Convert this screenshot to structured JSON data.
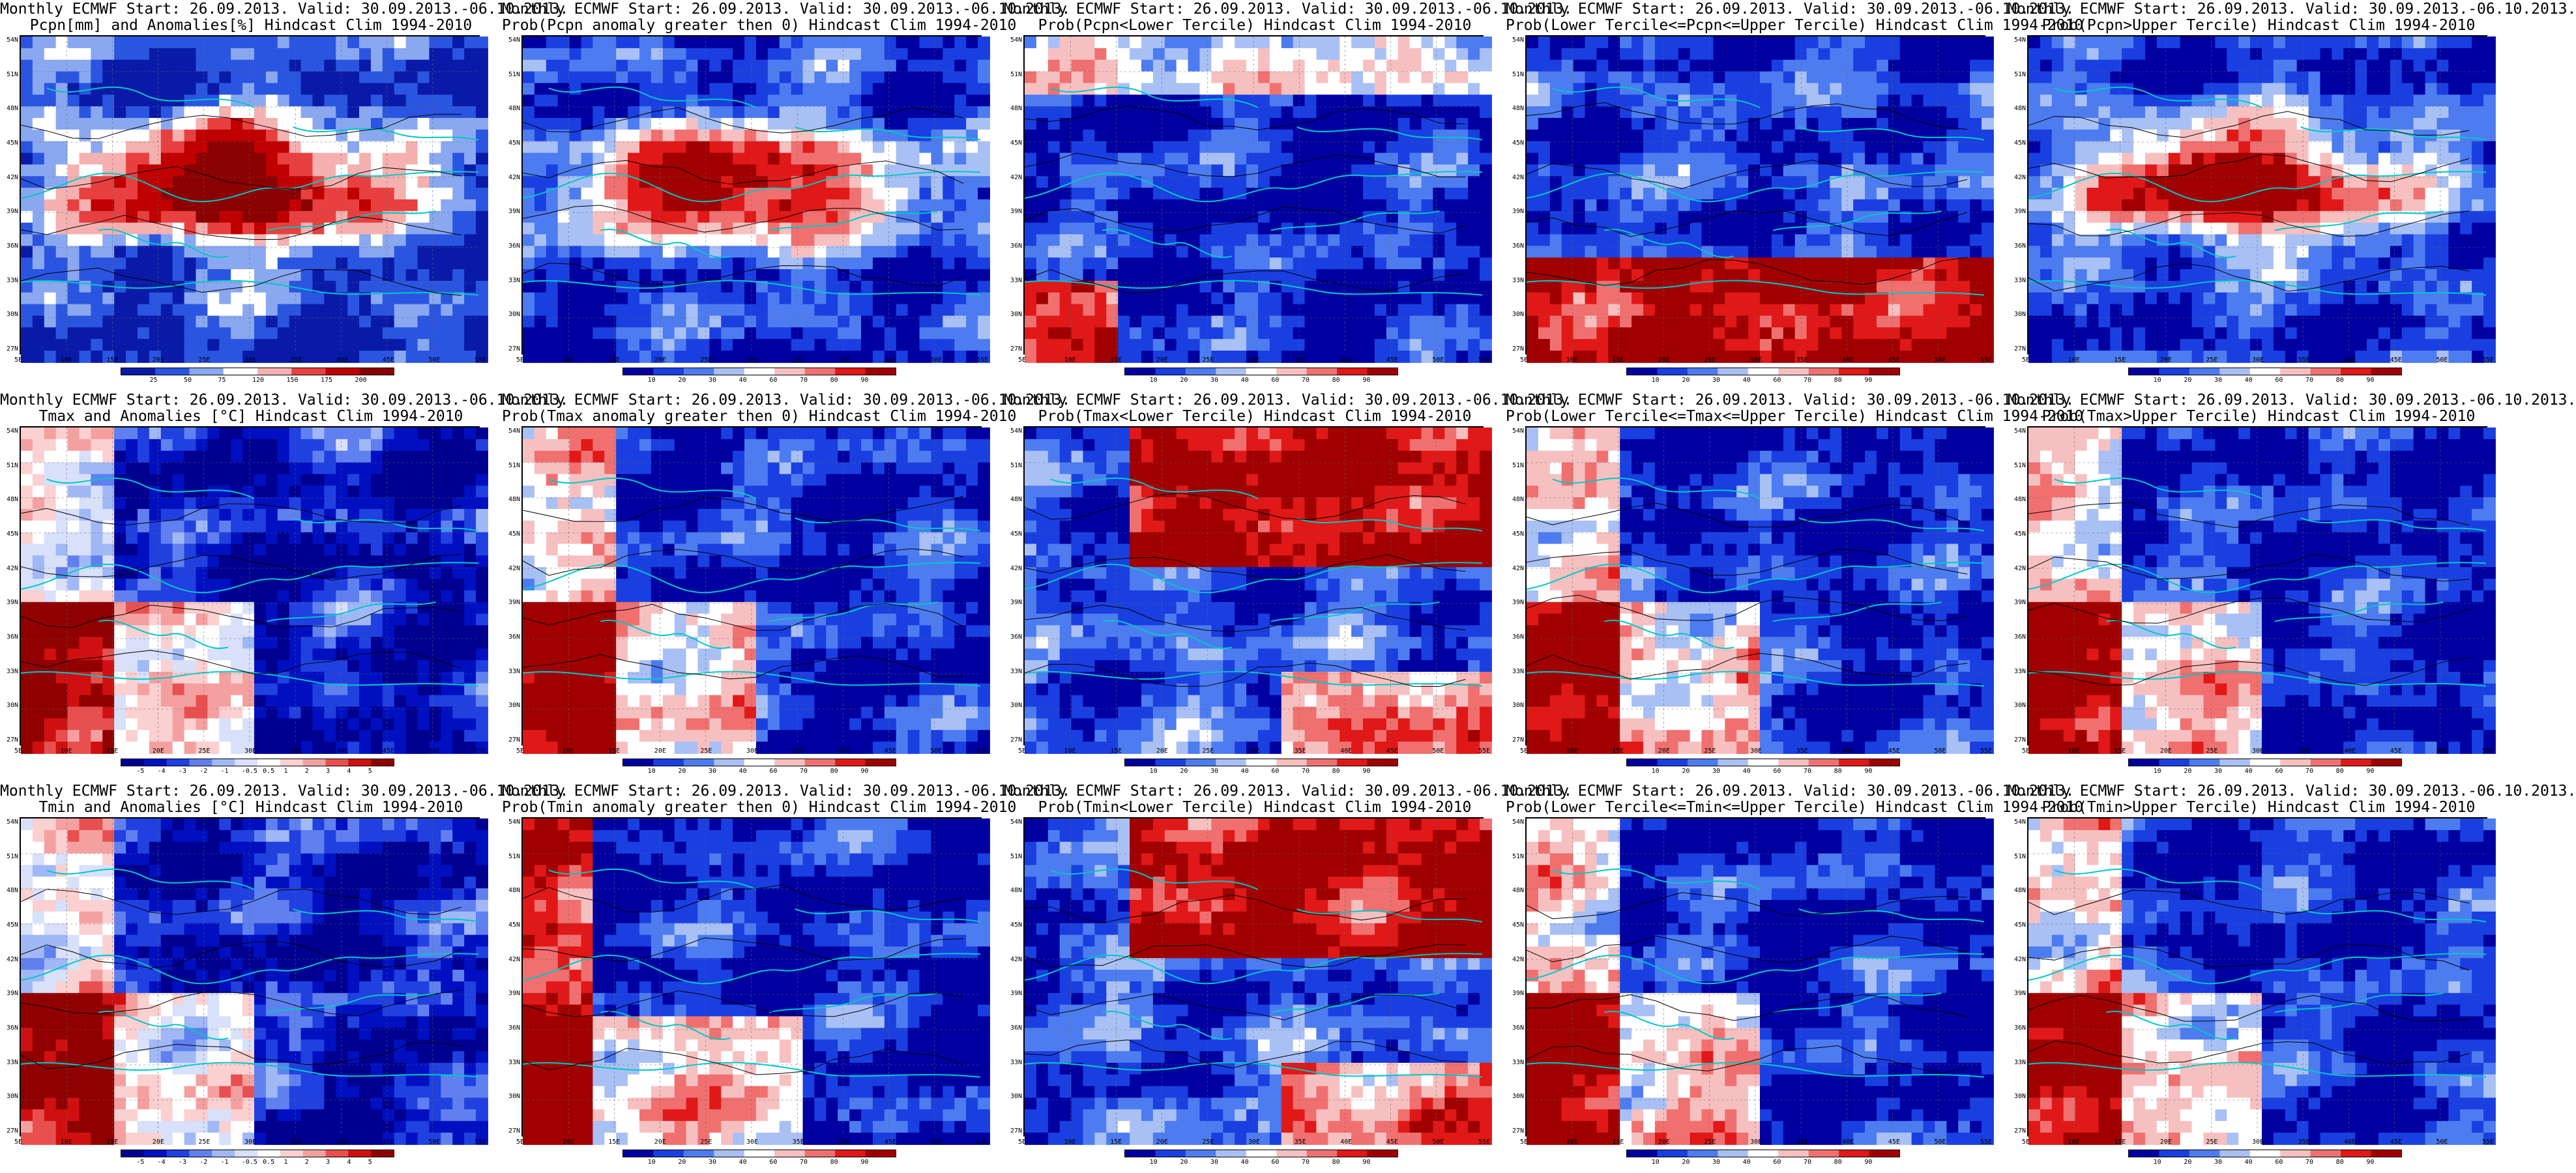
{
  "panels": [
    {
      "line1": "Monthly ECMWF Start: 26.09.2013. Valid: 30.09.2013.-06.10.2013.",
      "line2": "Pcpn[mm] and Anomalies[%] Hindcast Clim 1994-2010",
      "scale": "anom_pcpn",
      "colorbar_labels": [
        "25",
        "50",
        "75",
        "120",
        "150",
        "175",
        "200"
      ],
      "pattern": "wet"
    },
    {
      "line1": "Monthly ECMWF Start: 26.09.2013. Valid: 30.09.2013.-06.10.2013.",
      "line2": "Prob(Pcpn anomaly greater then 0) Hindcast Clim 1994-2010",
      "scale": "prob",
      "colorbar_labels": [
        "10",
        "20",
        "30",
        "40",
        "60",
        "70",
        "80",
        "90"
      ],
      "pattern": "wet"
    },
    {
      "line1": "Monthly ECMWF Start: 26.09.2013. Valid: 30.09.2013.-06.10.2013.",
      "line2": "Prob(Pcpn<Lower Tercile) Hindcast Clim 1994-2010",
      "scale": "prob",
      "colorbar_labels": [
        "10",
        "20",
        "30",
        "40",
        "60",
        "70",
        "80",
        "90"
      ],
      "pattern": "dry"
    },
    {
      "line1": "Monthly ECMWF Start: 26.09.2013. Valid: 30.09.2013.-06.10.2013.",
      "line2": "Prob(Lower Tercile<=Pcpn<=Upper Tercile) Hindcast Clim 1994-2010",
      "scale": "prob",
      "colorbar_labels": [
        "10",
        "20",
        "30",
        "40",
        "60",
        "70",
        "80",
        "90"
      ],
      "pattern": "south"
    },
    {
      "line1": "Monthly ECMWF Start: 26.09.2013. Valid: 30.09.2013.-06.10.2013.",
      "line2": "Prob(Pcpn>Upper Tercile) Hindcast Clim 1994-2010",
      "scale": "prob",
      "colorbar_labels": [
        "10",
        "20",
        "30",
        "40",
        "60",
        "70",
        "80",
        "90"
      ],
      "pattern": "wet"
    },
    {
      "line1": "Monthly ECMWF Start: 26.09.2013. Valid: 30.09.2013.-06.10.2013.",
      "line2": "Tmax and Anomalies [°C] Hindcast Clim 1994-2010",
      "scale": "anom_temp",
      "colorbar_labels": [
        "-5",
        "-4",
        "-3",
        "-2",
        "-1",
        "-0.5",
        "0.5",
        "1",
        "2",
        "3",
        "4",
        "5"
      ],
      "pattern": "cold"
    },
    {
      "line1": "Monthly ECMWF Start: 26.09.2013. Valid: 30.09.2013.-06.10.2013.",
      "line2": "Prob(Tmax anomaly greater then 0) Hindcast Clim 1994-2010",
      "scale": "prob",
      "colorbar_labels": [
        "10",
        "20",
        "30",
        "40",
        "60",
        "70",
        "80",
        "90"
      ],
      "pattern": "cold"
    },
    {
      "line1": "Monthly ECMWF Start: 26.09.2013. Valid: 30.09.2013.-06.10.2013.",
      "line2": "Prob(Tmax<Lower Tercile) Hindcast Clim 1994-2010",
      "scale": "prob",
      "colorbar_labels": [
        "10",
        "20",
        "30",
        "40",
        "60",
        "70",
        "80",
        "90"
      ],
      "pattern": "hotnorth"
    },
    {
      "line1": "Monthly ECMWF Start: 26.09.2013. Valid: 30.09.2013.-06.10.2013.",
      "line2": "Prob(Lower Tercile<=Tmax<=Upper Tercile) Hindcast Clim 1994-2010",
      "scale": "prob",
      "colorbar_labels": [
        "10",
        "20",
        "30",
        "40",
        "60",
        "70",
        "80",
        "90"
      ],
      "pattern": "cold"
    },
    {
      "line1": "Monthly ECMWF Start: 26.09.2013. Valid: 30.09.2013.-06.10.2013.",
      "line2": "Prob(Tmax>Upper Tercile) Hindcast Clim 1994-2010",
      "scale": "prob",
      "colorbar_labels": [
        "10",
        "20",
        "30",
        "40",
        "60",
        "70",
        "80",
        "90"
      ],
      "pattern": "cold"
    },
    {
      "line1": "Monthly ECMWF Start: 26.09.2013. Valid: 30.09.2013.-06.10.2013.",
      "line2": "Tmin and Anomalies [°C] Hindcast Clim 1994-2010",
      "scale": "anom_temp",
      "colorbar_labels": [
        "-5",
        "-4",
        "-3",
        "-2",
        "-1",
        "-0.5",
        "0.5",
        "1",
        "2",
        "3",
        "4",
        "5"
      ],
      "pattern": "cold"
    },
    {
      "line1": "Monthly ECMWF Start: 26.09.2013. Valid: 30.09.2013.-06.10.2013.",
      "line2": "Prob(Tmin anomaly greater then 0) Hindcast Clim 1994-2010",
      "scale": "prob",
      "colorbar_labels": [
        "10",
        "20",
        "30",
        "40",
        "60",
        "70",
        "80",
        "90"
      ],
      "pattern": "coldsouthwarm"
    },
    {
      "line1": "Monthly ECMWF Start: 26.09.2013. Valid: 30.09.2013.-06.10.2013.",
      "line2": "Prob(Tmin<Lower Tercile) Hindcast Clim 1994-2010",
      "scale": "prob",
      "colorbar_labels": [
        "10",
        "20",
        "30",
        "40",
        "60",
        "70",
        "80",
        "90"
      ],
      "pattern": "hotnorth"
    },
    {
      "line1": "Monthly ECMWF Start: 26.09.2013. Valid: 30.09.2013.-06.10.2013.",
      "line2": "Prob(Lower Tercile<=Tmin<=Upper Tercile) Hindcast Clim 1994-2010",
      "scale": "prob",
      "colorbar_labels": [
        "10",
        "20",
        "30",
        "40",
        "60",
        "70",
        "80",
        "90"
      ],
      "pattern": "cold"
    },
    {
      "line1": "Monthly ECMWF Start: 26.09.2013. Valid: 30.09.2013.-06.10.2013.",
      "line2": "Prob(Tmin>Upper Tercile) Hindcast Clim 1994-2010",
      "scale": "prob",
      "colorbar_labels": [
        "10",
        "20",
        "30",
        "40",
        "60",
        "70",
        "80",
        "90"
      ],
      "pattern": "cold"
    }
  ],
  "axis": {
    "lat_labels": [
      "54N",
      "51N",
      "48N",
      "45N",
      "42N",
      "39N",
      "36N",
      "33N",
      "30N",
      "27N"
    ],
    "lon_labels": [
      "5E",
      "10E",
      "15E",
      "20E",
      "25E",
      "30E",
      "35E",
      "40E",
      "45E",
      "50E",
      "55E"
    ]
  },
  "palette": {
    "prob": [
      "#0000a0",
      "#1a3fe0",
      "#4d7cf0",
      "#a9c0f5",
      "#ffffff",
      "#f7c0c0",
      "#f07070",
      "#e01818",
      "#a00000"
    ],
    "anom_pcpn": [
      "#0a1aa8",
      "#2a55e0",
      "#8aa8f0",
      "#ffffff",
      "#f5b0b0",
      "#e84040",
      "#c00000",
      "#8b0000"
    ],
    "anom_temp": [
      "#000090",
      "#0010c0",
      "#2040e0",
      "#6080f0",
      "#a0b8f5",
      "#d8e0fa",
      "#ffffff",
      "#fad0d0",
      "#f5a0a0",
      "#e85050",
      "#d01010",
      "#900000"
    ],
    "coast": "#00c8c8",
    "contour": "#000000"
  }
}
